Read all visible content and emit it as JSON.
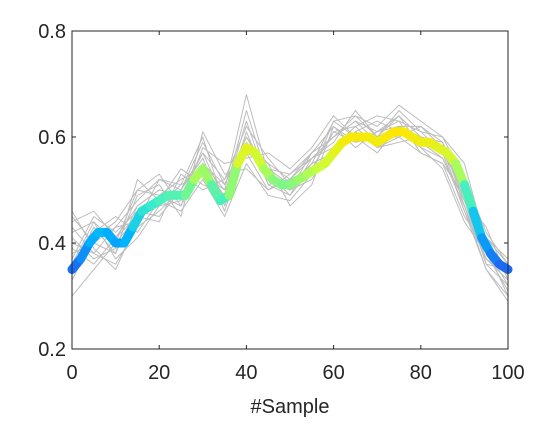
{
  "chart_data": {
    "type": "line",
    "title": "",
    "xlabel": "#Sample",
    "ylabel": "",
    "xlim": [
      0,
      100
    ],
    "ylim": [
      0.2,
      0.8
    ],
    "xticks": [
      0,
      20,
      40,
      60,
      80,
      100
    ],
    "xtick_labels": [
      "0",
      "20",
      "40",
      "60",
      "80",
      "100"
    ],
    "yticks": [
      0.2,
      0.4,
      0.6,
      0.8
    ],
    "ytick_labels": [
      "0.2",
      "0.4",
      "0.6",
      "0.8"
    ],
    "grid": false,
    "colors": {
      "samples": "#bdbdbd",
      "axis": "#262626",
      "mean_colormap": [
        "#1e64f0",
        "#00b4ff",
        "#3cf0c8",
        "#c8ff3c",
        "#ffe600"
      ]
    },
    "series": [
      {
        "role": "sample-curves",
        "x": [
          0,
          5,
          10,
          15,
          20,
          25,
          30,
          35,
          40,
          45,
          50,
          55,
          60,
          65,
          70,
          75,
          80,
          85,
          90,
          95,
          100
        ],
        "curves": [
          [
            0.44,
            0.46,
            0.41,
            0.47,
            0.5,
            0.49,
            0.55,
            0.51,
            0.6,
            0.54,
            0.53,
            0.56,
            0.6,
            0.63,
            0.61,
            0.62,
            0.6,
            0.58,
            0.5,
            0.4,
            0.35
          ],
          [
            0.4,
            0.38,
            0.36,
            0.43,
            0.46,
            0.5,
            0.57,
            0.48,
            0.57,
            0.5,
            0.52,
            0.57,
            0.62,
            0.59,
            0.6,
            0.64,
            0.6,
            0.59,
            0.48,
            0.36,
            0.32
          ],
          [
            0.35,
            0.43,
            0.38,
            0.52,
            0.48,
            0.46,
            0.52,
            0.45,
            0.55,
            0.49,
            0.48,
            0.53,
            0.57,
            0.61,
            0.58,
            0.6,
            0.57,
            0.55,
            0.45,
            0.39,
            0.3
          ],
          [
            0.3,
            0.35,
            0.4,
            0.45,
            0.44,
            0.53,
            0.5,
            0.52,
            0.62,
            0.56,
            0.51,
            0.55,
            0.63,
            0.64,
            0.62,
            0.66,
            0.63,
            0.6,
            0.52,
            0.42,
            0.36
          ],
          [
            0.38,
            0.4,
            0.43,
            0.48,
            0.52,
            0.51,
            0.6,
            0.47,
            0.58,
            0.52,
            0.5,
            0.52,
            0.58,
            0.6,
            0.59,
            0.61,
            0.58,
            0.56,
            0.47,
            0.37,
            0.33
          ],
          [
            0.42,
            0.44,
            0.37,
            0.41,
            0.47,
            0.48,
            0.53,
            0.5,
            0.68,
            0.53,
            0.49,
            0.54,
            0.61,
            0.62,
            0.64,
            0.63,
            0.61,
            0.6,
            0.55,
            0.4,
            0.34
          ],
          [
            0.33,
            0.41,
            0.44,
            0.5,
            0.53,
            0.47,
            0.58,
            0.55,
            0.56,
            0.57,
            0.54,
            0.58,
            0.64,
            0.6,
            0.57,
            0.62,
            0.59,
            0.57,
            0.46,
            0.35,
            0.29
          ],
          [
            0.46,
            0.39,
            0.35,
            0.44,
            0.49,
            0.52,
            0.54,
            0.49,
            0.63,
            0.51,
            0.52,
            0.56,
            0.59,
            0.65,
            0.6,
            0.6,
            0.62,
            0.58,
            0.49,
            0.41,
            0.37
          ],
          [
            0.37,
            0.45,
            0.42,
            0.46,
            0.45,
            0.5,
            0.56,
            0.46,
            0.59,
            0.55,
            0.47,
            0.51,
            0.62,
            0.58,
            0.61,
            0.64,
            0.58,
            0.54,
            0.44,
            0.38,
            0.31
          ],
          [
            0.41,
            0.37,
            0.39,
            0.49,
            0.51,
            0.45,
            0.61,
            0.53,
            0.54,
            0.5,
            0.53,
            0.57,
            0.6,
            0.63,
            0.59,
            0.62,
            0.6,
            0.59,
            0.51,
            0.36,
            0.35
          ],
          [
            0.34,
            0.42,
            0.45,
            0.42,
            0.48,
            0.54,
            0.51,
            0.49,
            0.65,
            0.52,
            0.5,
            0.55,
            0.57,
            0.61,
            0.63,
            0.61,
            0.59,
            0.56,
            0.48,
            0.43,
            0.33
          ],
          [
            0.45,
            0.4,
            0.38,
            0.47,
            0.5,
            0.49,
            0.57,
            0.52,
            0.58,
            0.54,
            0.51,
            0.53,
            0.63,
            0.6,
            0.6,
            0.65,
            0.61,
            0.57,
            0.5,
            0.39,
            0.32
          ],
          [
            0.39,
            0.36,
            0.41,
            0.45,
            0.47,
            0.51,
            0.53,
            0.48,
            0.61,
            0.51,
            0.49,
            0.56,
            0.58,
            0.62,
            0.58,
            0.59,
            0.6,
            0.58,
            0.46,
            0.37,
            0.34
          ],
          [
            0.36,
            0.44,
            0.4,
            0.5,
            0.49,
            0.47,
            0.55,
            0.5,
            0.57,
            0.55,
            0.52,
            0.54,
            0.61,
            0.59,
            0.61,
            0.63,
            0.57,
            0.55,
            0.49,
            0.41,
            0.36
          ],
          [
            0.43,
            0.38,
            0.43,
            0.44,
            0.52,
            0.5,
            0.59,
            0.51,
            0.6,
            0.53,
            0.5,
            0.57,
            0.6,
            0.64,
            0.6,
            0.62,
            0.62,
            0.59,
            0.47,
            0.35,
            0.3
          ]
        ]
      },
      {
        "role": "mean-curve",
        "x": [
          0,
          2,
          4,
          6,
          8,
          10,
          12,
          14,
          16,
          18,
          20,
          22,
          24,
          26,
          28,
          30,
          32,
          34,
          36,
          38,
          40,
          42,
          44,
          46,
          48,
          50,
          52,
          54,
          56,
          58,
          60,
          62,
          64,
          66,
          68,
          70,
          72,
          74,
          76,
          78,
          80,
          82,
          84,
          86,
          88,
          90,
          92,
          94,
          96,
          98,
          100
        ],
        "y": [
          0.35,
          0.37,
          0.4,
          0.42,
          0.42,
          0.4,
          0.4,
          0.43,
          0.46,
          0.47,
          0.48,
          0.49,
          0.49,
          0.49,
          0.52,
          0.54,
          0.51,
          0.48,
          0.49,
          0.55,
          0.58,
          0.57,
          0.54,
          0.52,
          0.51,
          0.51,
          0.52,
          0.53,
          0.54,
          0.55,
          0.57,
          0.59,
          0.6,
          0.6,
          0.6,
          0.59,
          0.6,
          0.61,
          0.61,
          0.6,
          0.59,
          0.59,
          0.58,
          0.57,
          0.55,
          0.51,
          0.46,
          0.41,
          0.38,
          0.36,
          0.35
        ]
      }
    ]
  }
}
